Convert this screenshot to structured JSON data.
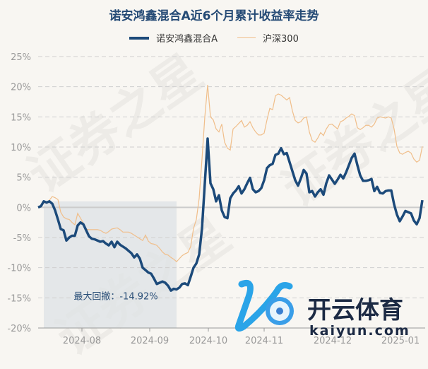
{
  "chart_data": {
    "type": "line",
    "title": "诺安鸿鑫混合A近6个月累计收益率走势",
    "xlabel": "",
    "ylabel": "",
    "ylim": [
      -20,
      25
    ],
    "yticks": [
      "25%",
      "20%",
      "15%",
      "10%",
      "5%",
      "0%",
      "-5%",
      "-10%",
      "-15%",
      "-20%"
    ],
    "ytick_values": [
      25,
      20,
      15,
      10,
      5,
      0,
      -5,
      -10,
      -15,
      -20
    ],
    "xticks": [
      {
        "label": "2024-08",
        "index": 15.5
      },
      {
        "label": "2024-09",
        "index": 39.5
      },
      {
        "label": "2024-10",
        "index": 60.25
      },
      {
        "label": "2024-11",
        "index": 80
      },
      {
        "label": "2024-12",
        "index": 104.25
      },
      {
        "label": "2025-01",
        "index": 128.25
      }
    ],
    "grid": true,
    "legend_position": "top",
    "series": [
      {
        "name": "诺安鸿鑫混合A",
        "color": "#1c4a7a",
        "values": [
          0,
          0.2,
          1.0,
          0.8,
          1.0,
          0.6,
          -0.5,
          -2.0,
          -3.6,
          -3.8,
          -5.5,
          -5.0,
          -4.7,
          -4.7,
          -3.0,
          -2.5,
          -2.8,
          -3.8,
          -4.8,
          -5.2,
          -5.3,
          -5.5,
          -5.7,
          -5.6,
          -6.0,
          -6.3,
          -5.7,
          -6.6,
          -5.7,
          -6.2,
          -6.5,
          -6.8,
          -7.2,
          -7.6,
          -8.3,
          -7.8,
          -8.5,
          -10.0,
          -10.4,
          -10.8,
          -11.0,
          -11.8,
          -12.7,
          -12.5,
          -12.3,
          -12.5,
          -13.0,
          -13.8,
          -13.5,
          -13.6,
          -13.3,
          -12.7,
          -12.6,
          -12.9,
          -11.5,
          -10.0,
          -9.3,
          -7.8,
          -3.5,
          4.0,
          11.4,
          4.0,
          3.0,
          1.0,
          2.0,
          -0.5,
          -1.6,
          -1.8,
          1.5,
          2.3,
          2.8,
          3.5,
          2.3,
          3.0,
          4.0,
          4.9,
          3.0,
          2.5,
          2.7,
          3.2,
          4.5,
          6.5,
          7.0,
          7.2,
          8.7,
          8.9,
          9.8,
          8.8,
          9.0,
          7.5,
          6.0,
          4.5,
          3.6,
          4.8,
          6.2,
          5.6,
          2.5,
          2.7,
          1.8,
          2.5,
          3.0,
          2.1,
          4.0,
          5.3,
          4.6,
          3.9,
          4.6,
          5.4,
          4.8,
          5.8,
          7.0,
          8.2,
          8.9,
          7.0,
          5.3,
          4.4,
          4.4,
          4.5,
          4.7,
          2.7,
          3.4,
          2.4,
          2.3,
          2.7,
          2.8,
          2.8,
          0.5,
          -1.2,
          -2.3,
          -1.5,
          -0.6,
          -0.8,
          -1.0,
          -2.2,
          -2.8,
          -1.8,
          1.2
        ]
      },
      {
        "name": "沪深300",
        "color": "#f0be8a",
        "values": [
          0,
          0.3,
          0.8,
          0.7,
          1.2,
          1.8,
          1.6,
          1.3,
          -0.8,
          -1.6,
          -1.9,
          -2.0,
          -2.5,
          -2.9,
          -1.0,
          -1.8,
          -2.6,
          -3.6,
          -3.7,
          -3.7,
          -3.7,
          -3.7,
          -3.8,
          -4.1,
          -4.3,
          -4.0,
          -3.6,
          -3.5,
          -3.4,
          -3.7,
          -4.1,
          -4.1,
          -4.1,
          -4.3,
          -4.6,
          -4.9,
          -5.2,
          -5.5,
          -4.6,
          -5.6,
          -6.0,
          -6.1,
          -6.3,
          -6.8,
          -7.4,
          -7.8,
          -7.9,
          -8.3,
          -8.6,
          -9.0,
          -8.5,
          -8.0,
          -7.7,
          -7.5,
          -6.5,
          -3.5,
          -2.0,
          1.5,
          8.0,
          15.0,
          20.3,
          15.0,
          14.5,
          13.0,
          12.5,
          13.8,
          10.8,
          9.8,
          9.5,
          13.0,
          13.4,
          13.9,
          14.4,
          13.3,
          13.6,
          14.2,
          13.2,
          12.5,
          12.0,
          12.0,
          12.3,
          14.5,
          16.4,
          16.2,
          18.5,
          18.8,
          18.6,
          18.2,
          17.8,
          18.2,
          16.0,
          14.4,
          14.0,
          14.2,
          14.8,
          15.0,
          12.5,
          11.1,
          10.8,
          11.5,
          12.4,
          11.9,
          13.0,
          13.7,
          13.8,
          13.4,
          13.0,
          14.2,
          14.4,
          14.8,
          15.1,
          15.5,
          15.2,
          13.2,
          12.9,
          13.2,
          13.6,
          13.6,
          13.3,
          13.8,
          14.8,
          15.0,
          14.9,
          14.8,
          15.0,
          14.8,
          13.0,
          10.1,
          9.0,
          8.8,
          9.1,
          9.3,
          9.0,
          8.0,
          7.5,
          7.8,
          10.1
        ]
      }
    ],
    "annotations": {
      "max_drawdown": {
        "label": "最大回撤：-14.92%",
        "start_index": 2,
        "end_index": 49,
        "value": -14.92
      }
    }
  },
  "legend": {
    "fund": "诺安鸿鑫混合A",
    "index": "沪深300"
  },
  "watermark": {
    "text": "证券之星",
    "logo_cn": "开云体育",
    "logo_en": "kaiyun.com"
  }
}
